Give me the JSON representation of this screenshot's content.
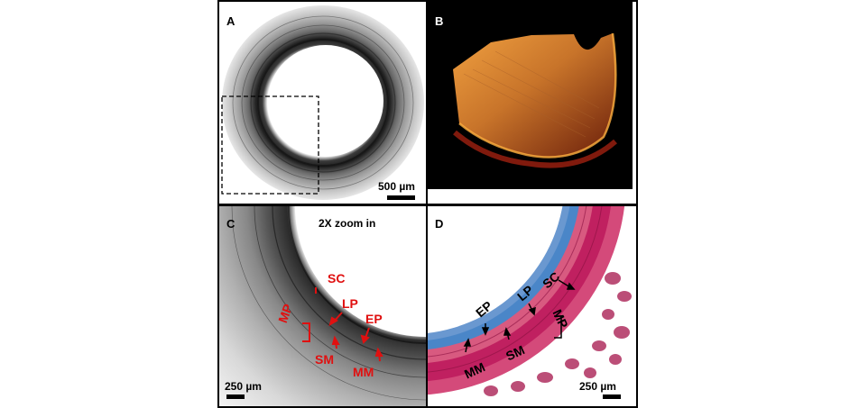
{
  "panels": {
    "a": {
      "letter": "A",
      "scale_label": "500 µm"
    },
    "b": {
      "letter": "B"
    },
    "c": {
      "letter": "C",
      "zoom_label": "2X zoom in",
      "scale_label": "250 µm",
      "labels": {
        "sc": "SC",
        "lp": "LP",
        "ep": "EP",
        "mp": "MP",
        "sm": "SM",
        "mm": "MM"
      }
    },
    "d": {
      "letter": "D",
      "scale_label": "250 µm",
      "labels": {
        "ep": "EP",
        "lp": "LP",
        "sc": "SC",
        "mp": "MP",
        "sm": "SM",
        "mm": "MM"
      }
    }
  },
  "colors": {
    "annotation_red": "#e01010",
    "stain_pink": "#c8306a",
    "stain_blue": "#3a7fc0",
    "fluor_orange": "#d9822b"
  }
}
